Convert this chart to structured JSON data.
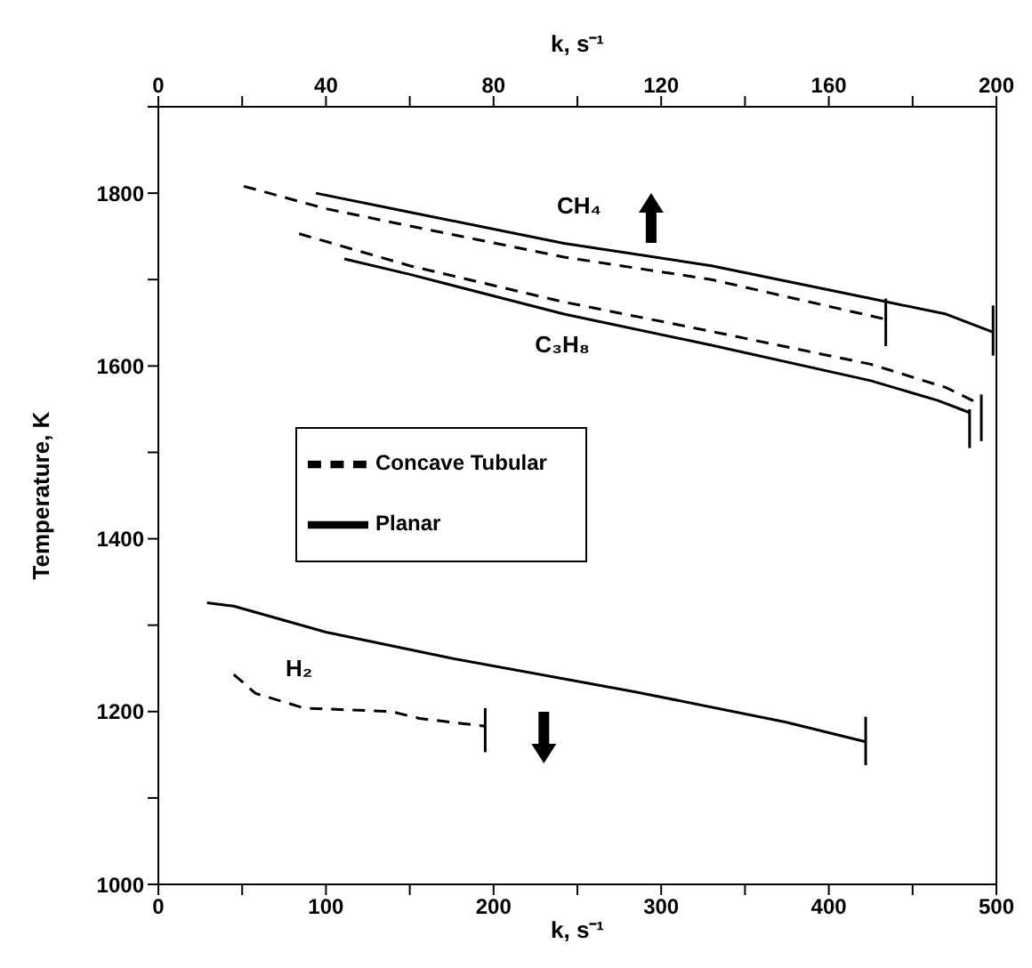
{
  "chart_data": {
    "type": "line",
    "xlabel": "k, s⁻¹",
    "x2label": "k, s⁻¹",
    "ylabel": "Temperature, K",
    "xlim": [
      0,
      500
    ],
    "xticks": [
      0,
      {
        "value": 50,
        "label": null
      },
      100,
      {
        "value": 150,
        "label": null
      },
      200,
      {
        "value": 250,
        "label": null
      },
      300,
      {
        "value": 350,
        "label": null
      },
      400,
      {
        "value": 450,
        "label": null
      },
      500
    ],
    "x2lim": [
      0,
      200
    ],
    "x2ticks": [
      0,
      {
        "value": 20,
        "label": null
      },
      40,
      {
        "value": 60,
        "label": null
      },
      80,
      {
        "value": 100,
        "label": null
      },
      120,
      {
        "value": 140,
        "label": null
      },
      160,
      {
        "value": 180,
        "label": null
      },
      200
    ],
    "ylim": [
      1000,
      1900
    ],
    "yticks": [
      1000,
      {
        "value": 1100,
        "label": null
      },
      1200,
      {
        "value": 1300,
        "label": null
      },
      1400,
      {
        "value": 1500,
        "label": null
      },
      1600,
      {
        "value": 1700,
        "label": null
      },
      1800,
      {
        "value": 1900,
        "label": null
      }
    ],
    "grid": false,
    "legend": "left",
    "marker": "none",
    "series": [
      {
        "name": "Concave Tubular",
        "color": "#000000",
        "line_style": "dashed",
        "x": [
          51,
          100,
          150,
          242,
          330,
          425,
          434
        ],
        "values": [
          1808,
          1782,
          1762,
          1726,
          1700,
          1658,
          1654
        ]
      },
      {
        "name": "Planar",
        "color": "#000000",
        "line_style": "solid",
        "x": [
          94,
          150,
          242,
          330,
          425,
          470,
          498
        ],
        "values": [
          1800,
          1778,
          1742,
          1716,
          1678,
          1660,
          1639
        ]
      },
      {
        "color": "#000000",
        "line_style": "dashed",
        "x": [
          84,
          150,
          242,
          330,
          425,
          470,
          491
        ],
        "values": [
          1753,
          1716,
          1674,
          1640,
          1602,
          1575,
          1555
        ]
      },
      {
        "color": "#000000",
        "line_style": "solid",
        "x": [
          111,
          150,
          242,
          330,
          425,
          465,
          484
        ],
        "values": [
          1724,
          1706,
          1660,
          1624,
          1583,
          1560,
          1546
        ]
      },
      {
        "color": "#000000",
        "line_style": "dashed",
        "x": [
          45,
          58,
          87,
          139,
          156,
          195
        ],
        "values": [
          1243,
          1221,
          1204,
          1200,
          1192,
          1183
        ]
      },
      {
        "color": "#000000",
        "line_style": "solid",
        "x": [
          29,
          45,
          100,
          174,
          284,
          374,
          422
        ],
        "values": [
          1326,
          1322,
          1292,
          1262,
          1223,
          1188,
          1165
        ]
      },
      {
        "color": "#000000",
        "line_style": "solid",
        "x": [
          434,
          434
        ],
        "values": [
          1623,
          1678
        ]
      },
      {
        "color": "#000000",
        "line_style": "solid",
        "x": [
          498,
          498
        ],
        "values": [
          1612,
          1670
        ]
      },
      {
        "color": "#000000",
        "line_style": "solid",
        "x": [
          491,
          491
        ],
        "values": [
          1513,
          1567
        ]
      },
      {
        "color": "#000000",
        "line_style": "solid",
        "x": [
          484,
          484
        ],
        "values": [
          1505,
          1550
        ]
      },
      {
        "color": "#000000",
        "line_style": "solid",
        "x": [
          195,
          195
        ],
        "values": [
          1153,
          1204
        ]
      },
      {
        "color": "#000000",
        "line_style": "solid",
        "x": [
          422,
          422
        ],
        "values": [
          1138,
          1194
        ]
      }
    ],
    "annotations": [
      "CH₄",
      "C₃H₈",
      "H₂"
    ]
  }
}
